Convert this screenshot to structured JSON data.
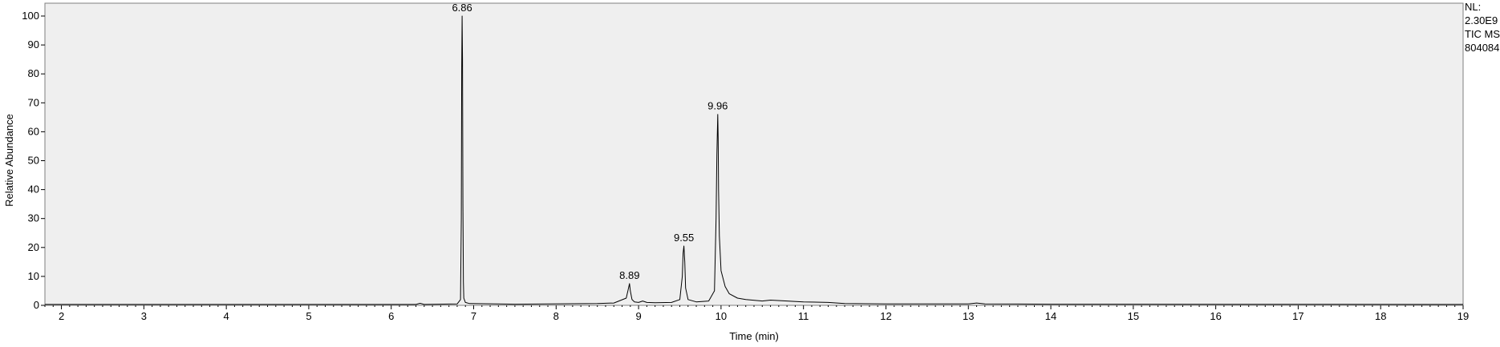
{
  "chart_data": {
    "type": "line",
    "xlabel": "Time (min)",
    "ylabel": "Relative Abundance",
    "xlim": [
      1.8,
      19.0
    ],
    "ylim": [
      0,
      100
    ],
    "x_ticks": [
      "2",
      "3",
      "4",
      "5",
      "6",
      "7",
      "8",
      "9",
      "10",
      "11",
      "12",
      "13",
      "14",
      "15",
      "16",
      "17",
      "18",
      "19"
    ],
    "y_ticks": [
      "0",
      "10",
      "20",
      "30",
      "40",
      "50",
      "60",
      "70",
      "80",
      "90",
      "100"
    ],
    "grid": false,
    "series": [
      {
        "x": [
          1.8,
          6.3,
          6.35,
          6.4,
          6.8,
          6.84,
          6.85,
          6.855,
          6.86,
          6.865,
          6.87,
          6.875,
          6.88,
          6.9,
          6.95,
          7.5,
          8.5,
          8.7,
          8.85,
          8.875,
          8.89,
          8.9,
          8.92,
          8.95,
          9.0,
          9.05,
          9.1,
          9.2,
          9.4,
          9.5,
          9.53,
          9.54,
          9.55,
          9.56,
          9.57,
          9.6,
          9.7,
          9.85,
          9.92,
          9.94,
          9.95,
          9.96,
          9.965,
          9.97,
          9.98,
          10.0,
          10.05,
          10.1,
          10.2,
          10.3,
          10.5,
          10.6,
          11.0,
          11.3,
          11.5,
          12.0,
          13.0,
          13.1,
          13.2,
          14.0,
          19.0
        ],
        "y": [
          0.3,
          0.3,
          0.7,
          0.3,
          0.5,
          2.0,
          30.0,
          82.0,
          100.0,
          85.0,
          35.0,
          8.0,
          2.5,
          1.0,
          0.6,
          0.4,
          0.6,
          0.8,
          2.5,
          5.5,
          7.5,
          5.0,
          2.0,
          1.2,
          1.0,
          1.5,
          1.0,
          0.9,
          1.0,
          2.0,
          10.0,
          18.0,
          20.5,
          15.0,
          6.0,
          2.0,
          1.2,
          1.5,
          5.0,
          30.0,
          52.0,
          66.0,
          58.0,
          40.0,
          24.0,
          12.0,
          6.5,
          4.0,
          2.5,
          2.0,
          1.5,
          1.8,
          1.2,
          1.0,
          0.6,
          0.5,
          0.5,
          0.8,
          0.5,
          0.4,
          0.3
        ]
      }
    ],
    "annotations": [
      {
        "text": "6.86",
        "x": 6.86,
        "y": 100.0
      },
      {
        "text": "8.89",
        "x": 8.89,
        "y": 7.5
      },
      {
        "text": "9.55",
        "x": 9.55,
        "y": 20.5
      },
      {
        "text": "9.96",
        "x": 9.96,
        "y": 66.0
      }
    ],
    "side_info": [
      "NL:",
      "2.30E9",
      "TIC  MS",
      "804084"
    ]
  }
}
